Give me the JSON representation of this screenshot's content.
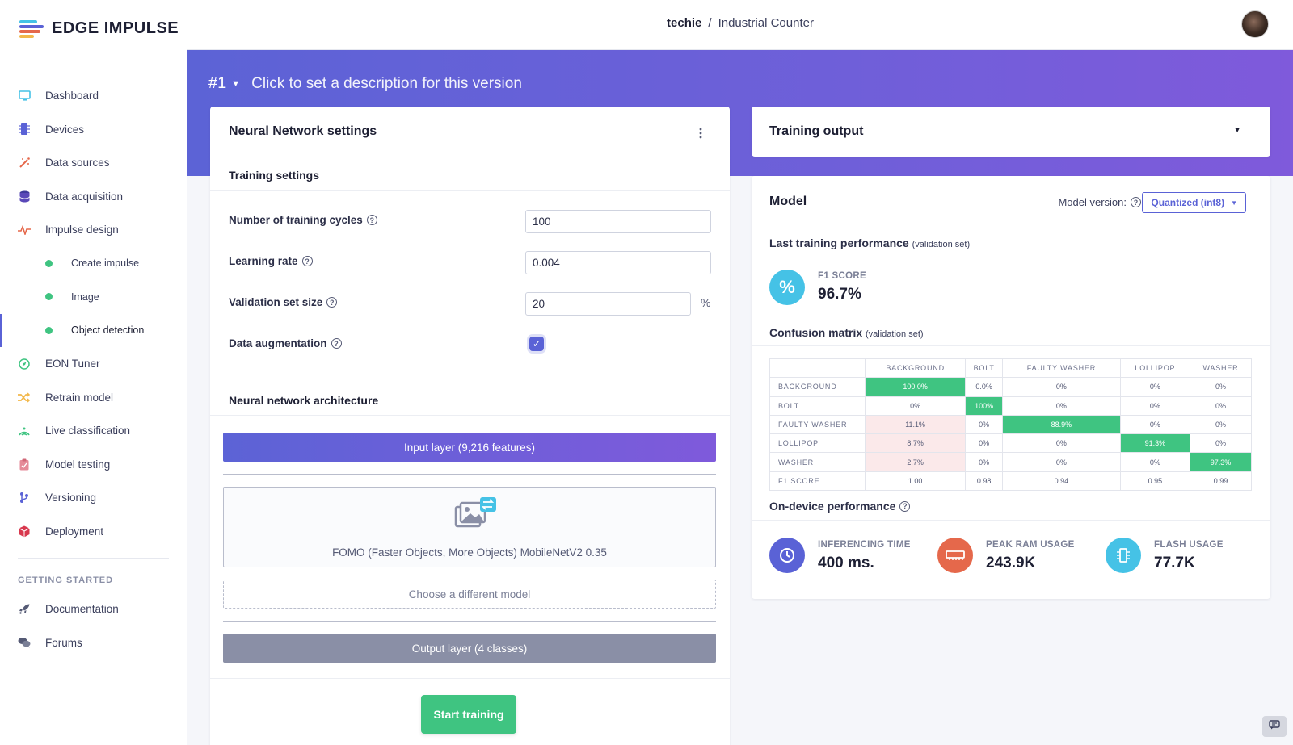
{
  "brand": {
    "name": "EDGE IMPULSE"
  },
  "breadcrumb": {
    "owner": "techie",
    "separator": "/",
    "project": "Industrial Counter"
  },
  "sidebar": {
    "items": [
      {
        "label": "Dashboard",
        "icon": "monitor-icon"
      },
      {
        "label": "Devices",
        "icon": "chip-icon"
      },
      {
        "label": "Data sources",
        "icon": "wand-icon"
      },
      {
        "label": "Data acquisition",
        "icon": "database-icon"
      },
      {
        "label": "Impulse design",
        "icon": "pulse-icon"
      },
      {
        "label": "Create impulse",
        "sub": true
      },
      {
        "label": "Image",
        "sub": true
      },
      {
        "label": "Object detection",
        "sub": true,
        "active": true
      },
      {
        "label": "EON Tuner",
        "icon": "compass-icon"
      },
      {
        "label": "Retrain model",
        "icon": "shuffle-icon"
      },
      {
        "label": "Live classification",
        "icon": "signal-icon"
      },
      {
        "label": "Model testing",
        "icon": "clipboard-icon"
      },
      {
        "label": "Versioning",
        "icon": "branch-icon"
      },
      {
        "label": "Deployment",
        "icon": "box-icon"
      }
    ],
    "getting_started_heading": "GETTING STARTED",
    "getting_started": [
      {
        "label": "Documentation",
        "icon": "rocket-icon"
      },
      {
        "label": "Forums",
        "icon": "chat-icon"
      }
    ]
  },
  "version": {
    "number": "#1",
    "description": "Click to set a description for this version"
  },
  "nn_settings": {
    "title": "Neural Network settings",
    "training_settings_heading": "Training settings",
    "fields": {
      "cycles": {
        "label": "Number of training cycles",
        "value": "100"
      },
      "learning_rate": {
        "label": "Learning rate",
        "value": "0.004"
      },
      "validation": {
        "label": "Validation set size",
        "value": "20",
        "unit": "%"
      },
      "augmentation": {
        "label": "Data augmentation",
        "checked": true
      }
    },
    "architecture_heading": "Neural network architecture",
    "input_layer": "Input layer (9,216 features)",
    "model_name": "FOMO (Faster Objects, More Objects) MobileNetV2 0.35",
    "choose_model": "Choose a different model",
    "output_layer": "Output layer (4 classes)",
    "start_button": "Start training"
  },
  "training_output": {
    "title": "Training output"
  },
  "model": {
    "title": "Model",
    "version_label": "Model version:",
    "version_value": "Quantized (int8)",
    "last_perf_heading": "Last training performance",
    "last_perf_note": "(validation set)",
    "f1": {
      "label": "F1 SCORE",
      "value": "96.7%",
      "icon_text": "%"
    },
    "cm_heading": "Confusion matrix",
    "cm_note": "(validation set)",
    "confusion_matrix": {
      "columns": [
        "BACKGROUND",
        "BOLT",
        "FAULTY WASHER",
        "LOLLIPOP",
        "WASHER"
      ],
      "rows": [
        {
          "label": "BACKGROUND",
          "cells": [
            "100.0%",
            "0.0%",
            "0%",
            "0%",
            "0%"
          ],
          "styles": [
            "hi",
            "",
            "",
            "",
            ""
          ]
        },
        {
          "label": "BOLT",
          "cells": [
            "0%",
            "100%",
            "0%",
            "0%",
            "0%"
          ],
          "styles": [
            "",
            "hi",
            "",
            "",
            ""
          ]
        },
        {
          "label": "FAULTY WASHER",
          "cells": [
            "11.1%",
            "0%",
            "88.9%",
            "0%",
            "0%"
          ],
          "styles": [
            "lo",
            "",
            "hi",
            "",
            ""
          ]
        },
        {
          "label": "LOLLIPOP",
          "cells": [
            "8.7%",
            "0%",
            "0%",
            "91.3%",
            "0%"
          ],
          "styles": [
            "lo",
            "",
            "",
            "hi",
            ""
          ]
        },
        {
          "label": "WASHER",
          "cells": [
            "2.7%",
            "0%",
            "0%",
            "0%",
            "97.3%"
          ],
          "styles": [
            "lo",
            "",
            "",
            "",
            "hi"
          ]
        },
        {
          "label": "F1 SCORE",
          "cells": [
            "1.00",
            "0.98",
            "0.94",
            "0.95",
            "0.99"
          ],
          "styles": [
            "",
            "",
            "",
            "",
            ""
          ]
        }
      ]
    },
    "ondevice_heading": "On-device performance",
    "ondevice": {
      "inference": {
        "label": "INFERENCING TIME",
        "value": "400 ms."
      },
      "ram": {
        "label": "PEAK RAM USAGE",
        "value": "243.9K"
      },
      "flash": {
        "label": "FLASH USAGE",
        "value": "77.7K"
      }
    }
  },
  "colors": {
    "accent": "#5a62d6",
    "success": "#3fc481",
    "danger": "#e5684b",
    "info": "#45c2e6"
  }
}
